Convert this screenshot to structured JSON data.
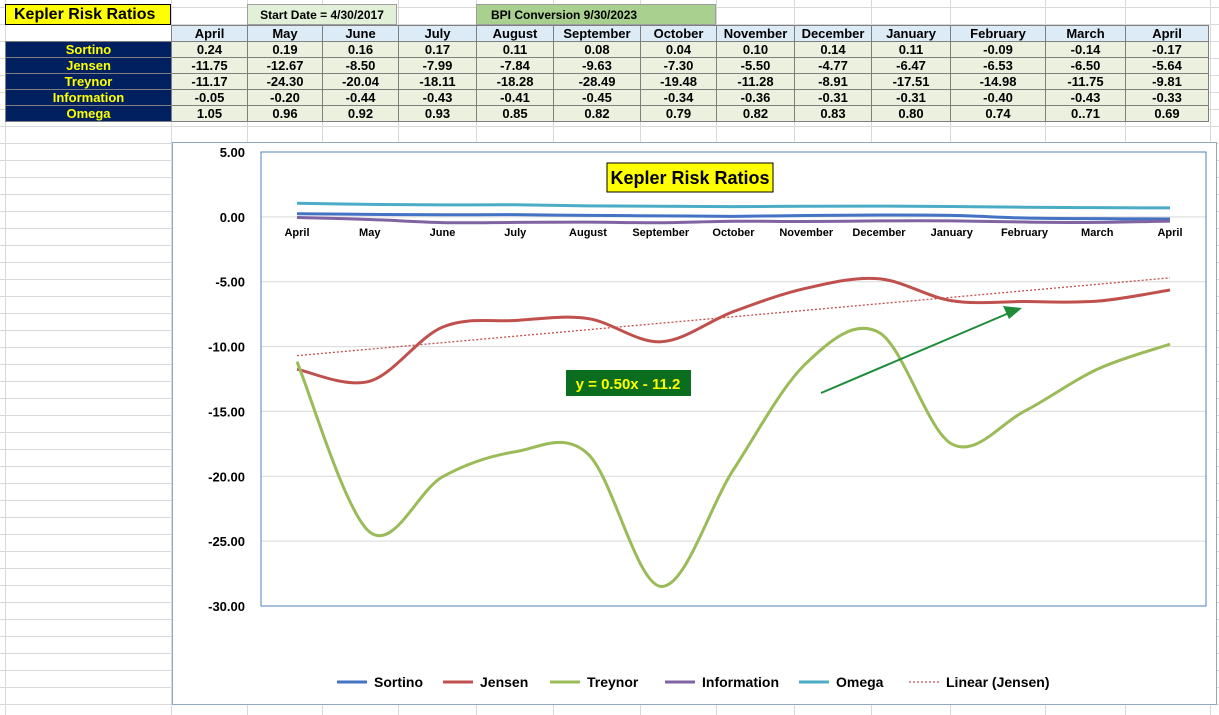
{
  "sheet": {
    "title": "Kepler Risk Ratios",
    "start_date": "Start Date = 4/30/2017",
    "bpi_conversion": "BPI Conversion 9/30/2023",
    "months": [
      "April",
      "May",
      "June",
      "July",
      "August",
      "September",
      "October",
      "November",
      "December",
      "January",
      "February",
      "March",
      "April"
    ],
    "rows": [
      {
        "label": "Sortino",
        "values": [
          "0.24",
          "0.19",
          "0.16",
          "0.17",
          "0.11",
          "0.08",
          "0.04",
          "0.10",
          "0.14",
          "0.11",
          "-0.09",
          "-0.14",
          "-0.17"
        ]
      },
      {
        "label": "Jensen",
        "values": [
          "-11.75",
          "-12.67",
          "-8.50",
          "-7.99",
          "-7.84",
          "-9.63",
          "-7.30",
          "-5.50",
          "-4.77",
          "-6.47",
          "-6.53",
          "-6.50",
          "-5.64"
        ]
      },
      {
        "label": "Treynor",
        "values": [
          "-11.17",
          "-24.30",
          "-20.04",
          "-18.11",
          "-18.28",
          "-28.49",
          "-19.48",
          "-11.28",
          "-8.91",
          "-17.51",
          "-14.98",
          "-11.75",
          "-9.81"
        ]
      },
      {
        "label": "Information",
        "values": [
          "-0.05",
          "-0.20",
          "-0.44",
          "-0.43",
          "-0.41",
          "-0.45",
          "-0.34",
          "-0.36",
          "-0.31",
          "-0.31",
          "-0.40",
          "-0.43",
          "-0.33"
        ]
      },
      {
        "label": "Omega",
        "values": [
          "1.05",
          "0.96",
          "0.92",
          "0.93",
          "0.85",
          "0.82",
          "0.79",
          "0.82",
          "0.83",
          "0.80",
          "0.74",
          "0..71",
          "0.69"
        ]
      }
    ]
  },
  "chart_data": {
    "type": "line",
    "title": "Kepler Risk Ratios",
    "categories": [
      "April",
      "May",
      "June",
      "July",
      "August",
      "September",
      "October",
      "November",
      "December",
      "January",
      "February",
      "March",
      "April"
    ],
    "ylim": [
      -30,
      5
    ],
    "yticks": [
      "5.00",
      "0.00",
      "-5.00",
      "-10.00",
      "-15.00",
      "-20.00",
      "-25.00",
      "-30.00"
    ],
    "grid": true,
    "legend_position": "bottom",
    "series": [
      {
        "name": "Sortino",
        "color": "#4472c4",
        "values": [
          0.24,
          0.19,
          0.16,
          0.17,
          0.11,
          0.08,
          0.04,
          0.1,
          0.14,
          0.11,
          -0.09,
          -0.14,
          -0.17
        ]
      },
      {
        "name": "Jensen",
        "color": "#c0504d",
        "values": [
          -11.75,
          -12.67,
          -8.5,
          -7.99,
          -7.84,
          -9.63,
          -7.3,
          -5.5,
          -4.77,
          -6.47,
          -6.53,
          -6.5,
          -5.64
        ]
      },
      {
        "name": "Treynor",
        "color": "#9bbb59",
        "values": [
          -11.17,
          -24.3,
          -20.04,
          -18.11,
          -18.28,
          -28.49,
          -19.48,
          -11.28,
          -8.91,
          -17.51,
          -14.98,
          -11.75,
          -9.81
        ]
      },
      {
        "name": "Information",
        "color": "#8064a2",
        "values": [
          -0.05,
          -0.2,
          -0.44,
          -0.43,
          -0.41,
          -0.45,
          -0.34,
          -0.36,
          -0.31,
          -0.31,
          -0.4,
          -0.43,
          -0.33
        ]
      },
      {
        "name": "Omega",
        "color": "#4bacc6",
        "values": [
          1.05,
          0.96,
          0.92,
          0.93,
          0.85,
          0.82,
          0.79,
          0.82,
          0.83,
          0.8,
          0.74,
          0.71,
          0.69
        ]
      }
    ],
    "trendline": {
      "name": "Linear (Jensen)",
      "color": "#c0504d",
      "slope": 0.5,
      "intercept": -11.2,
      "equation": "y = 0.50x - 11.2"
    },
    "annotation": {
      "type": "arrow",
      "color": "#1e8c3a"
    }
  }
}
